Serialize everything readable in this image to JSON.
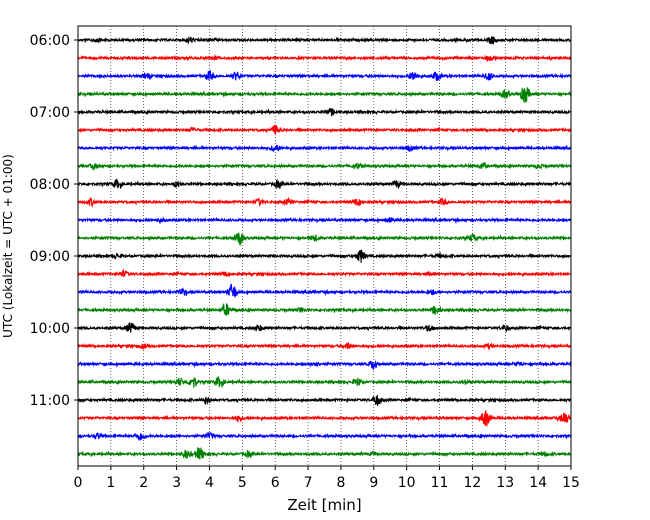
{
  "chart_data": {
    "type": "line",
    "title": "",
    "xlabel": "Zeit  [min]",
    "ylabel": "UTC (Lokalzeit = UTC + 01:00)",
    "xlim": [
      0,
      15
    ],
    "x_ticks": [
      0,
      1,
      2,
      3,
      4,
      5,
      6,
      7,
      8,
      9,
      10,
      11,
      12,
      13,
      14,
      15
    ],
    "y_tick_labels": [
      "06:00",
      "07:00",
      "08:00",
      "09:00",
      "10:00",
      "11:00"
    ],
    "grid": "vertical",
    "trace_colors": [
      "#000000",
      "#ff0000",
      "#0000ff",
      "#008000"
    ],
    "traces": [
      {
        "events": [
          [
            3.4,
            0.3
          ],
          [
            12.6,
            0.4
          ],
          [
            0.6,
            0.15
          ]
        ]
      },
      {
        "events": [
          [
            4.2,
            0.2
          ],
          [
            12.5,
            0.25
          ]
        ]
      },
      {
        "events": [
          [
            4.0,
            0.5
          ],
          [
            4.8,
            0.4
          ],
          [
            10.2,
            0.5
          ],
          [
            10.9,
            0.45
          ],
          [
            12.5,
            0.35
          ],
          [
            2.1,
            0.25
          ]
        ]
      },
      {
        "events": [
          [
            13.6,
            1.0
          ],
          [
            13.0,
            0.4
          ]
        ]
      },
      {
        "events": [
          [
            7.7,
            0.3
          ]
        ]
      },
      {
        "events": [
          [
            6.0,
            0.45
          ],
          [
            3.5,
            0.2
          ]
        ]
      },
      {
        "events": [
          [
            6.0,
            0.4
          ],
          [
            10.1,
            0.3
          ]
        ]
      },
      {
        "events": [
          [
            8.5,
            0.25
          ],
          [
            12.3,
            0.3
          ],
          [
            14.0,
            0.2
          ],
          [
            0.5,
            0.2
          ]
        ]
      },
      {
        "events": [
          [
            1.2,
            0.45
          ],
          [
            6.1,
            0.4
          ],
          [
            9.7,
            0.35
          ],
          [
            3.0,
            0.25
          ]
        ]
      },
      {
        "events": [
          [
            0.4,
            0.35
          ],
          [
            5.5,
            0.3
          ],
          [
            6.4,
            0.25
          ],
          [
            8.5,
            0.35
          ],
          [
            11.1,
            0.3
          ]
        ]
      },
      {
        "events": [
          [
            2.5,
            0.2
          ],
          [
            9.5,
            0.2
          ]
        ]
      },
      {
        "events": [
          [
            4.9,
            0.7
          ],
          [
            7.2,
            0.3
          ],
          [
            12.0,
            0.35
          ]
        ]
      },
      {
        "events": [
          [
            8.6,
            0.7
          ],
          [
            1.2,
            0.2
          ],
          [
            11.0,
            0.2
          ]
        ]
      },
      {
        "events": [
          [
            1.4,
            0.3
          ],
          [
            4.5,
            0.2
          ],
          [
            10.7,
            0.2
          ]
        ]
      },
      {
        "events": [
          [
            4.7,
            0.9
          ],
          [
            3.2,
            0.3
          ],
          [
            10.8,
            0.25
          ]
        ]
      },
      {
        "events": [
          [
            4.5,
            0.65
          ],
          [
            10.9,
            0.45
          ],
          [
            6.8,
            0.2
          ]
        ]
      },
      {
        "events": [
          [
            1.6,
            0.55
          ],
          [
            5.5,
            0.3
          ],
          [
            10.7,
            0.3
          ],
          [
            13.0,
            0.3
          ]
        ]
      },
      {
        "events": [
          [
            8.2,
            0.3
          ],
          [
            12.5,
            0.2
          ],
          [
            2.0,
            0.2
          ]
        ]
      },
      {
        "events": [
          [
            9.0,
            0.55
          ],
          [
            7.2,
            0.25
          ],
          [
            13.4,
            0.2
          ]
        ]
      },
      {
        "events": [
          [
            3.5,
            0.65
          ],
          [
            4.3,
            0.55
          ],
          [
            8.5,
            0.4
          ],
          [
            3.1,
            0.4
          ],
          [
            11.8,
            0.2
          ]
        ]
      },
      {
        "events": [
          [
            9.1,
            0.6
          ],
          [
            3.9,
            0.35
          ]
        ]
      },
      {
        "events": [
          [
            12.4,
            0.9
          ],
          [
            14.8,
            0.7
          ],
          [
            4.9,
            0.25
          ]
        ]
      },
      {
        "events": [
          [
            0.6,
            0.3
          ],
          [
            1.9,
            0.45
          ],
          [
            4.0,
            0.3
          ]
        ]
      },
      {
        "events": [
          [
            3.7,
            0.7
          ],
          [
            3.3,
            0.45
          ],
          [
            5.2,
            0.3
          ],
          [
            9.0,
            0.2
          ],
          [
            14.2,
            0.2
          ]
        ]
      }
    ]
  }
}
